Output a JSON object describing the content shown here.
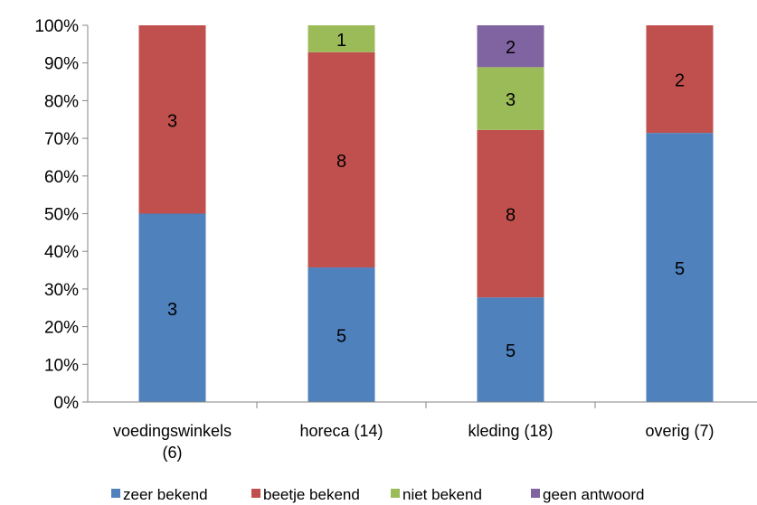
{
  "chart_data": {
    "type": "bar",
    "stacked": true,
    "normalized_percent": true,
    "categories": [
      "voedingswinkels (6)",
      "horeca (14)",
      "kleding (18)",
      "overig (7)"
    ],
    "category_label_lines": [
      [
        "voedingswinkels",
        "(6)"
      ],
      [
        "horeca (14)"
      ],
      [
        "kleding (18)"
      ],
      [
        "overig (7)"
      ]
    ],
    "series": [
      {
        "name": "zeer bekend",
        "color": "#4f81bd",
        "values": [
          3,
          5,
          5,
          5
        ]
      },
      {
        "name": "beetje bekend",
        "color": "#c0504d",
        "values": [
          3,
          8,
          8,
          2
        ]
      },
      {
        "name": "niet bekend",
        "color": "#9bbb59",
        "values": [
          0,
          1,
          3,
          0
        ]
      },
      {
        "name": "geen antwoord",
        "color": "#8064a2",
        "values": [
          0,
          0,
          2,
          0
        ]
      }
    ],
    "ylim": [
      0,
      100
    ],
    "y_ticks": [
      "0%",
      "10%",
      "20%",
      "30%",
      "40%",
      "50%",
      "60%",
      "70%",
      "80%",
      "90%",
      "100%"
    ],
    "grid": false,
    "legend_position": "bottom"
  }
}
